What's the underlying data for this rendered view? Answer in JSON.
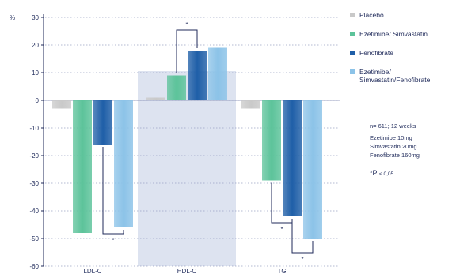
{
  "chart_data": {
    "type": "bar",
    "ylabel": "%",
    "ylim": [
      -60,
      30
    ],
    "yticks": [
      30,
      20,
      10,
      0,
      -10,
      -20,
      -30,
      -40,
      -50,
      -60
    ],
    "categories": [
      "LDL-C",
      "HDL-C",
      "TG"
    ],
    "highlighted_category": "HDL-C",
    "series": [
      {
        "name": "Placebo",
        "color": "#c9c9c9",
        "values": [
          -3,
          1,
          -3
        ]
      },
      {
        "name": "Ezetimibe/ Simvastatin",
        "color": "#5cc39a",
        "values": [
          -48,
          9,
          -29
        ]
      },
      {
        "name": "Fenofibrate",
        "color": "#1f5fa8",
        "values": [
          -16,
          18,
          -42
        ]
      },
      {
        "name": "Ezetimibe/ Simvastatin/Fenofibrate",
        "color": "#8cc3e8",
        "values": [
          -46,
          19,
          -50
        ]
      }
    ],
    "significance": [
      {
        "category": "LDL-C",
        "between": [
          "Fenofibrate",
          "Ezetimibe/ Simvastatin/Fenofibrate"
        ],
        "label": "*"
      },
      {
        "category": "HDL-C",
        "between": [
          "Ezetimibe/ Simvastatin",
          "Fenofibrate"
        ],
        "label": "*"
      },
      {
        "category": "TG",
        "between": [
          "Ezetimibe/ Simvastatin",
          "Fenofibrate"
        ],
        "label": "*"
      },
      {
        "category": "TG",
        "between": [
          "Fenofibrate",
          "Ezetimibe/ Simvastatin/Fenofibrate"
        ],
        "label": "*"
      }
    ]
  },
  "notes": {
    "n_line": "n= 611; 12 weeks",
    "dose_lines": [
      "Ezetimibe 10mg",
      "Simvastatin 20mg",
      "Fenofibrate 160mg"
    ],
    "sig_symbol": "*P",
    "sig_threshold": "< 0,05"
  },
  "colors": {
    "axis_text": "#1f2a5a",
    "highlight_band": "#dde3f0",
    "bracket": "#1f2a5a"
  }
}
